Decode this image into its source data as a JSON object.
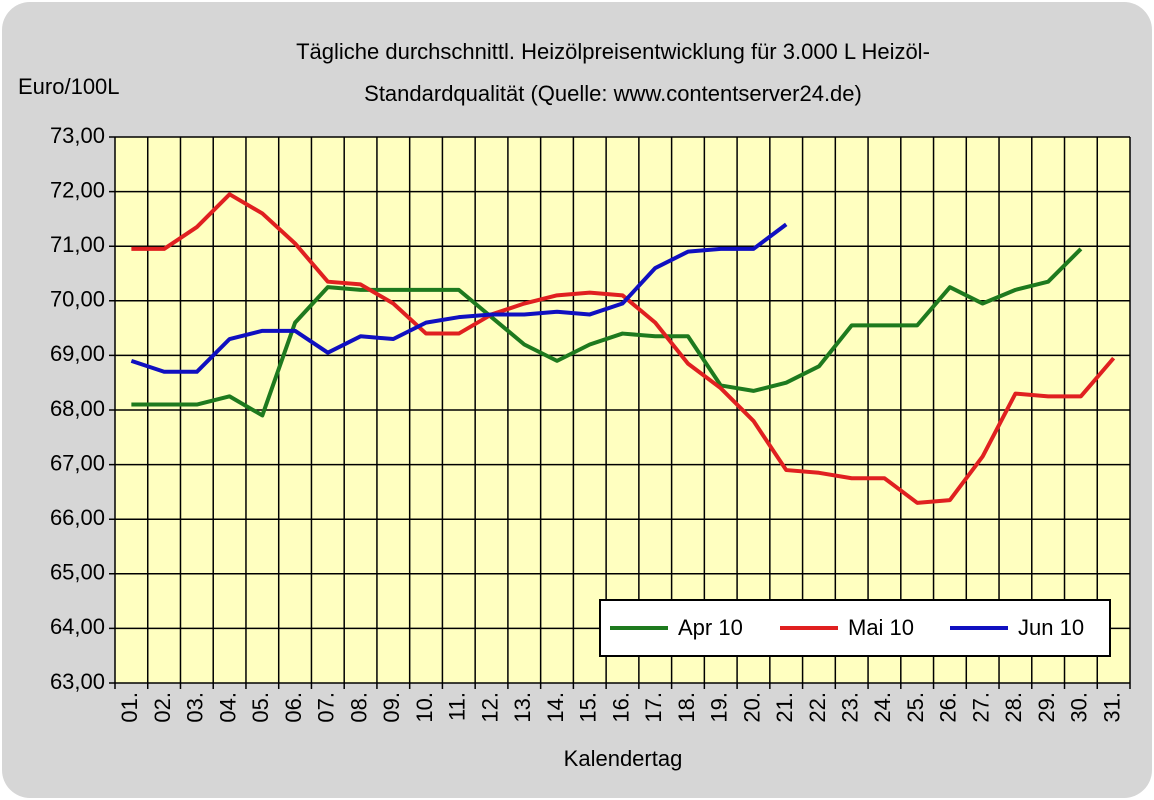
{
  "chart_data": {
    "type": "line",
    "title": [
      "Tägliche durchschnittl. Heizölpreisentwicklung für 3.000 L Heizöl-",
      "Standardqualität (Quelle: www.contentserver24.de)"
    ],
    "y_label": "Euro/100L",
    "x_label": "Kalendertag",
    "categories": [
      "01.",
      "02.",
      "03.",
      "04.",
      "05.",
      "06.",
      "07.",
      "08.",
      "09.",
      "10.",
      "11.",
      "12.",
      "13.",
      "14.",
      "15.",
      "16.",
      "17.",
      "18.",
      "19.",
      "20.",
      "21.",
      "22.",
      "23.",
      "24.",
      "25.",
      "26.",
      "27.",
      "28.",
      "29.",
      "30.",
      "31."
    ],
    "series": [
      {
        "name": "Apr 10",
        "color": "#1e7a1e",
        "values": [
          68.1,
          68.1,
          68.1,
          68.25,
          67.9,
          69.6,
          70.25,
          70.2,
          70.2,
          70.2,
          70.2,
          69.7,
          69.2,
          68.9,
          69.2,
          69.4,
          69.35,
          69.35,
          68.45,
          68.35,
          68.5,
          68.8,
          69.55,
          69.55,
          69.55,
          70.25,
          69.95,
          70.2,
          70.35,
          70.95,
          null
        ]
      },
      {
        "name": "Mai 10",
        "color": "#e02020",
        "values": [
          70.95,
          70.95,
          71.35,
          71.95,
          71.6,
          71.05,
          70.35,
          70.3,
          69.95,
          69.4,
          69.4,
          69.75,
          69.95,
          70.1,
          70.15,
          70.1,
          69.6,
          68.85,
          68.4,
          67.8,
          66.9,
          66.85,
          66.75,
          66.75,
          66.3,
          66.35,
          67.15,
          68.3,
          68.25,
          68.25,
          68.95
        ]
      },
      {
        "name": "Jun 10",
        "color": "#1010c0",
        "values": [
          68.9,
          68.7,
          68.7,
          69.3,
          69.45,
          69.45,
          69.05,
          69.35,
          69.3,
          69.6,
          69.7,
          69.75,
          69.75,
          69.8,
          69.75,
          69.95,
          70.6,
          70.9,
          70.95,
          70.95,
          71.4,
          null,
          null,
          null,
          null,
          null,
          null,
          null,
          null,
          null,
          null
        ]
      }
    ],
    "ylim": [
      63,
      73
    ],
    "yticks": [
      {
        "value": 63,
        "label": "63,00"
      },
      {
        "value": 64,
        "label": "64,00"
      },
      {
        "value": 65,
        "label": "65,00"
      },
      {
        "value": 66,
        "label": "66,00"
      },
      {
        "value": 67,
        "label": "67,00"
      },
      {
        "value": 68,
        "label": "68,00"
      },
      {
        "value": 69,
        "label": "69,00"
      },
      {
        "value": 70,
        "label": "70,00"
      },
      {
        "value": 71,
        "label": "71,00"
      },
      {
        "value": 72,
        "label": "72,00"
      },
      {
        "value": 73,
        "label": "73,00"
      }
    ],
    "grid": true,
    "legend": "lower right"
  }
}
